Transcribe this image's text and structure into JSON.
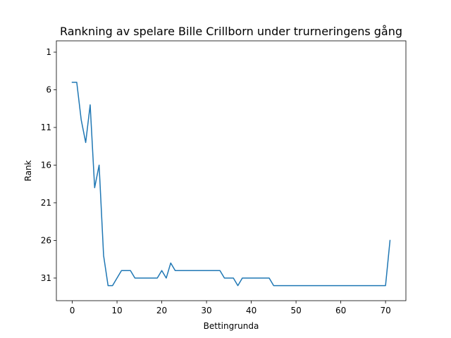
{
  "chart_data": {
    "type": "line",
    "title": "Rankning av spelare Bille Crillborn under trurneringens gång",
    "xlabel": "Bettingrunda",
    "ylabel": "Rank",
    "xlim": [
      -3.55,
      74.55
    ],
    "ylim": [
      34.0,
      -0.5
    ],
    "y_inverted": true,
    "grid": false,
    "x_ticks": [
      0,
      10,
      20,
      30,
      40,
      50,
      60,
      70
    ],
    "y_ticks": [
      1,
      6,
      11,
      16,
      21,
      26,
      31
    ],
    "line_color": "#1f77b4",
    "series": [
      {
        "x": [
          0,
          1,
          2,
          3,
          4,
          5,
          6,
          7,
          8,
          9,
          10,
          11,
          12,
          13,
          14,
          15,
          16,
          17,
          18,
          19,
          20,
          21,
          22,
          23,
          24,
          25,
          26,
          27,
          28,
          29,
          30,
          31,
          32,
          33,
          34,
          35,
          36,
          37,
          38,
          39,
          40,
          41,
          42,
          43,
          44,
          45,
          46,
          47,
          48,
          49,
          50,
          51,
          52,
          53,
          54,
          55,
          56,
          57,
          58,
          59,
          60,
          61,
          62,
          63,
          64,
          65,
          66,
          67,
          68,
          69,
          70,
          71
        ],
        "y": [
          5,
          5,
          10,
          13,
          8,
          19,
          16,
          28,
          32,
          32,
          31,
          30,
          30,
          30,
          31,
          31,
          31,
          31,
          31,
          31,
          30,
          31,
          29,
          30,
          30,
          30,
          30,
          30,
          30,
          30,
          30,
          30,
          30,
          30,
          31,
          31,
          31,
          32,
          31,
          31,
          31,
          31,
          31,
          31,
          31,
          32,
          32,
          32,
          32,
          32,
          32,
          32,
          32,
          32,
          32,
          32,
          32,
          32,
          32,
          32,
          32,
          32,
          32,
          32,
          32,
          32,
          32,
          32,
          32,
          32,
          32,
          26
        ]
      }
    ]
  }
}
